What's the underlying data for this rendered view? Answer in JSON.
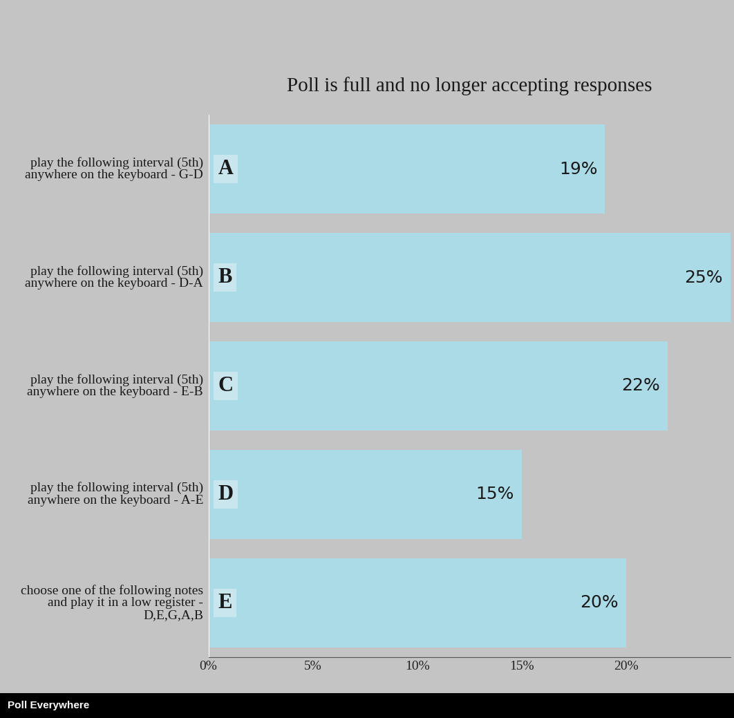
{
  "chart_data": {
    "type": "bar",
    "orientation": "horizontal",
    "title": "Poll is full and no longer accepting responses",
    "categories": [
      "play the following interval (5th) anywhere on the keyboard - G-D",
      "play the following interval (5th) anywhere on the keyboard - D-A",
      "play the following interval (5th) anywhere on the keyboard - E-B",
      "play the following interval (5th) anywhere on the keyboard - A-E",
      "choose one of the following notes and play it in a low register - D,E,G,A,B"
    ],
    "bar_letters": [
      "A",
      "B",
      "C",
      "D",
      "E"
    ],
    "values": [
      19,
      25,
      22,
      15,
      20
    ],
    "value_labels": [
      "19%",
      "25%",
      "22%",
      "15%",
      "20%"
    ],
    "data_labels": true,
    "color": "#abdbe7",
    "xlim": [
      0,
      25
    ],
    "xticks": [
      {
        "value": 0,
        "label": "0%"
      },
      {
        "value": 5,
        "label": "5%"
      },
      {
        "value": 10,
        "label": "10%"
      },
      {
        "value": 15,
        "label": "15%"
      },
      {
        "value": 20,
        "label": "20%"
      }
    ],
    "grid": false,
    "footer": "Poll Everywhere"
  }
}
